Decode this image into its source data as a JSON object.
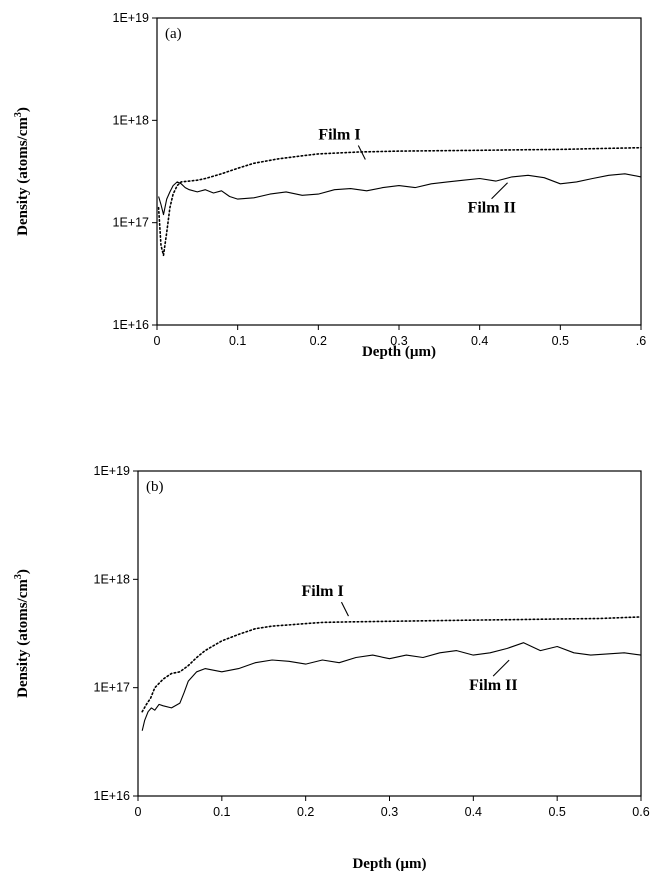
{
  "chart_data": [
    {
      "type": "line",
      "panel_label": "(a)",
      "xlabel": "Depth (µm)",
      "ylabel": "Density (atoms/cm",
      "ylabel_sup": "3",
      "ylabel_close": ")",
      "yscale": "log",
      "xlim": [
        0,
        0.6
      ],
      "ylim": [
        1e+16,
        1e+19
      ],
      "x_ticks": [
        "0",
        "0.1",
        "0.2",
        "0.3",
        "0.4",
        "0.5",
        ".6"
      ],
      "y_ticks": [
        "1E+16",
        "1E+17",
        "1E+18",
        "1E+19"
      ],
      "grid": false,
      "series": [
        {
          "name": "Film I",
          "style": "dotted",
          "x": [
            0.002,
            0.005,
            0.008,
            0.012,
            0.016,
            0.02,
            0.025,
            0.03,
            0.04,
            0.05,
            0.06,
            0.08,
            0.1,
            0.12,
            0.15,
            0.18,
            0.2,
            0.25,
            0.3,
            0.35,
            0.4,
            0.45,
            0.5,
            0.55,
            0.6
          ],
          "y": [
            1.4e+17,
            6e+16,
            4.8e+16,
            8e+16,
            1.4e+17,
            1.9e+17,
            2.3e+17,
            2.5e+17,
            2.55e+17,
            2.6e+17,
            2.7e+17,
            3e+17,
            3.4e+17,
            3.8e+17,
            4.2e+17,
            4.5e+17,
            4.7e+17,
            4.9e+17,
            5e+17,
            5.05e+17,
            5.1e+17,
            5.15e+17,
            5.2e+17,
            5.3e+17,
            5.4e+17
          ]
        },
        {
          "name": "Film II",
          "style": "solid",
          "x": [
            0.002,
            0.005,
            0.008,
            0.012,
            0.016,
            0.02,
            0.025,
            0.03,
            0.035,
            0.04,
            0.05,
            0.06,
            0.07,
            0.08,
            0.09,
            0.1,
            0.12,
            0.14,
            0.16,
            0.18,
            0.2,
            0.22,
            0.24,
            0.26,
            0.28,
            0.3,
            0.32,
            0.34,
            0.36,
            0.38,
            0.4,
            0.42,
            0.44,
            0.46,
            0.48,
            0.5,
            0.52,
            0.54,
            0.56,
            0.58,
            0.6
          ],
          "y": [
            1.8e+17,
            1.5e+17,
            1.2e+17,
            1.7e+17,
            2e+17,
            2.3e+17,
            2.5e+17,
            2.4e+17,
            2.2e+17,
            2.1e+17,
            2e+17,
            2.1e+17,
            1.95e+17,
            2.05e+17,
            1.8e+17,
            1.7e+17,
            1.75e+17,
            1.9e+17,
            2e+17,
            1.85e+17,
            1.9e+17,
            2.1e+17,
            2.15e+17,
            2.05e+17,
            2.2e+17,
            2.3e+17,
            2.2e+17,
            2.4e+17,
            2.5e+17,
            2.6e+17,
            2.7e+17,
            2.55e+17,
            2.8e+17,
            2.9e+17,
            2.75e+17,
            2.4e+17,
            2.5e+17,
            2.7e+17,
            2.9e+17,
            3e+17,
            2.8e+17
          ]
        }
      ],
      "annotations": [
        {
          "text": "Film I",
          "x": 0.2,
          "y": 6.5e+17
        },
        {
          "text": "Film II",
          "x": 0.385,
          "y": 1.25e+17
        }
      ]
    },
    {
      "type": "line",
      "panel_label": "(b)",
      "xlabel": "Depth (µm)",
      "ylabel": "Density (atoms/cm",
      "ylabel_sup": "3",
      "ylabel_close": ")",
      "yscale": "log",
      "xlim": [
        0,
        0.6
      ],
      "ylim": [
        1e+16,
        1e+19
      ],
      "x_ticks": [
        "0",
        "0.1",
        "0.2",
        "0.3",
        "0.4",
        "0.5",
        "0.6"
      ],
      "y_ticks": [
        "1E+16",
        "1E+17",
        "1E+18",
        "1E+19"
      ],
      "grid": false,
      "series": [
        {
          "name": "Film I",
          "style": "dotted",
          "x": [
            0.005,
            0.01,
            0.015,
            0.02,
            0.03,
            0.04,
            0.05,
            0.06,
            0.07,
            0.08,
            0.1,
            0.12,
            0.14,
            0.16,
            0.18,
            0.2,
            0.22,
            0.25,
            0.3,
            0.35,
            0.4,
            0.45,
            0.5,
            0.55,
            0.6
          ],
          "y": [
            6e+16,
            7e+16,
            8e+16,
            1e+17,
            1.2e+17,
            1.35e+17,
            1.4e+17,
            1.6e+17,
            1.9e+17,
            2.2e+17,
            2.7e+17,
            3.1e+17,
            3.5e+17,
            3.7e+17,
            3.8e+17,
            3.9e+17,
            4e+17,
            4.05e+17,
            4.1e+17,
            4.15e+17,
            4.2e+17,
            4.25e+17,
            4.3e+17,
            4.35e+17,
            4.5e+17
          ]
        },
        {
          "name": "Film II",
          "style": "solid",
          "x": [
            0.005,
            0.008,
            0.012,
            0.016,
            0.02,
            0.025,
            0.03,
            0.04,
            0.05,
            0.055,
            0.06,
            0.07,
            0.08,
            0.09,
            0.1,
            0.12,
            0.14,
            0.16,
            0.18,
            0.2,
            0.22,
            0.24,
            0.26,
            0.28,
            0.3,
            0.32,
            0.34,
            0.36,
            0.38,
            0.4,
            0.42,
            0.44,
            0.46,
            0.48,
            0.5,
            0.52,
            0.54,
            0.56,
            0.58,
            0.6
          ],
          "y": [
            4e+16,
            5e+16,
            6e+16,
            6.5e+16,
            6.2e+16,
            7e+16,
            6.8e+16,
            6.5e+16,
            7.2e+16,
            9e+16,
            1.15e+17,
            1.4e+17,
            1.5e+17,
            1.45e+17,
            1.4e+17,
            1.5e+17,
            1.7e+17,
            1.8e+17,
            1.75e+17,
            1.65e+17,
            1.8e+17,
            1.7e+17,
            1.9e+17,
            2e+17,
            1.85e+17,
            2e+17,
            1.9e+17,
            2.1e+17,
            2.2e+17,
            2e+17,
            2.1e+17,
            2.3e+17,
            2.6e+17,
            2.2e+17,
            2.4e+17,
            2.1e+17,
            2e+17,
            2.05e+17,
            2.1e+17,
            2e+17
          ]
        }
      ],
      "annotations": [
        {
          "text": "Film I",
          "x": 0.195,
          "y": 7e+17
        },
        {
          "text": "Film II",
          "x": 0.395,
          "y": 9.5e+16
        }
      ]
    }
  ]
}
